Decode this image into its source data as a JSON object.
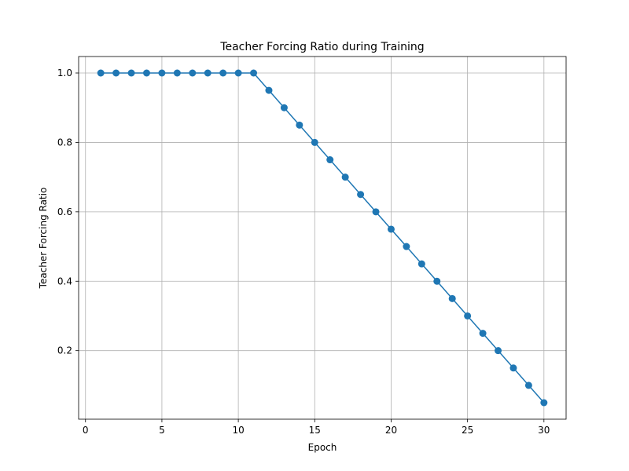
{
  "chart_data": {
    "type": "line",
    "title": "Teacher Forcing Ratio during Training",
    "xlabel": "Epoch",
    "ylabel": "Teacher Forcing Ratio",
    "xlim": [
      -0.45,
      31.45
    ],
    "ylim": [
      0.0025,
      1.0475
    ],
    "xticks": [
      0,
      5,
      10,
      15,
      20,
      25,
      30
    ],
    "yticks": [
      0.2,
      0.4,
      0.6,
      0.8,
      1.0
    ],
    "xtick_labels": [
      "0",
      "5",
      "10",
      "15",
      "20",
      "25",
      "30"
    ],
    "ytick_labels": [
      "0.2",
      "0.4",
      "0.6",
      "0.8",
      "1.0"
    ],
    "grid": true,
    "color": "#1f77b4",
    "marker": "circle",
    "x": [
      1,
      2,
      3,
      4,
      5,
      6,
      7,
      8,
      9,
      10,
      11,
      12,
      13,
      14,
      15,
      16,
      17,
      18,
      19,
      20,
      21,
      22,
      23,
      24,
      25,
      26,
      27,
      28,
      29,
      30
    ],
    "y": [
      1.0,
      1.0,
      1.0,
      1.0,
      1.0,
      1.0,
      1.0,
      1.0,
      1.0,
      1.0,
      1.0,
      0.95,
      0.9,
      0.85,
      0.8,
      0.75,
      0.7,
      0.65,
      0.6,
      0.55,
      0.5,
      0.45,
      0.4,
      0.35,
      0.3,
      0.25,
      0.2,
      0.15,
      0.1,
      0.05
    ]
  }
}
